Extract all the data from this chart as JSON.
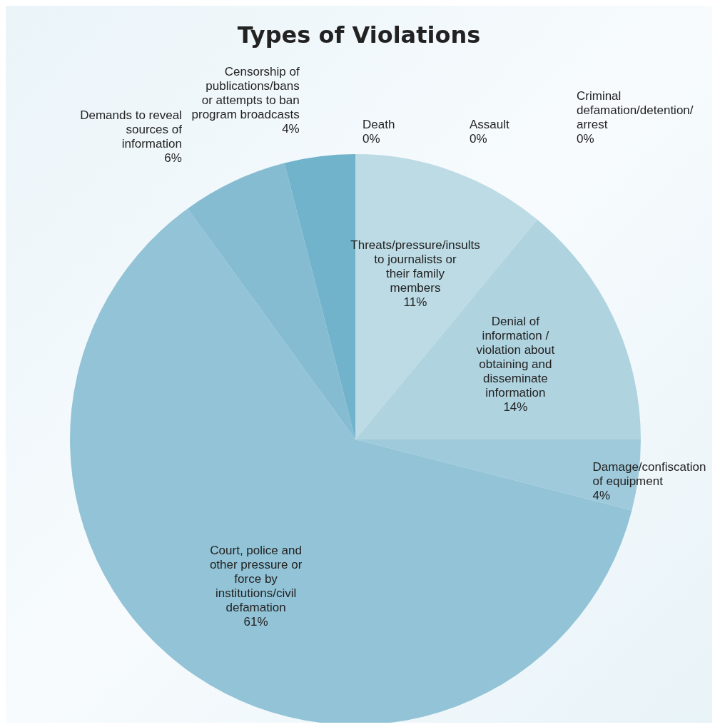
{
  "chart_data": {
    "type": "pie",
    "title": "Types of Violations",
    "categories": [
      "Threats/pressure/insults to journalists or their family members",
      "Denial of information / violation about obtaining and disseminate information",
      "Damage/confiscation of equipment",
      "Court, police and other pressure or force by institutions/civil defamation",
      "Demands to reveal sources of information",
      "Censorship of publications/bans or attempts to ban program broadcasts",
      "Death",
      "Assault",
      "Criminal defamation/detention/ arrest"
    ],
    "values": [
      11,
      14,
      4,
      61,
      6,
      4,
      0,
      0,
      0
    ],
    "colors": [
      "#bddbe5",
      "#afd3df",
      "#9fcadb",
      "#93c3d6",
      "#86bcd2",
      "#72b3cc",
      "#6aaec8",
      "#62a9c4",
      "#c4dfe8"
    ],
    "value_labels": [
      "11%",
      "14%",
      "4%",
      "61%",
      "6%",
      "4%",
      "0%",
      "0%",
      "0%"
    ]
  }
}
